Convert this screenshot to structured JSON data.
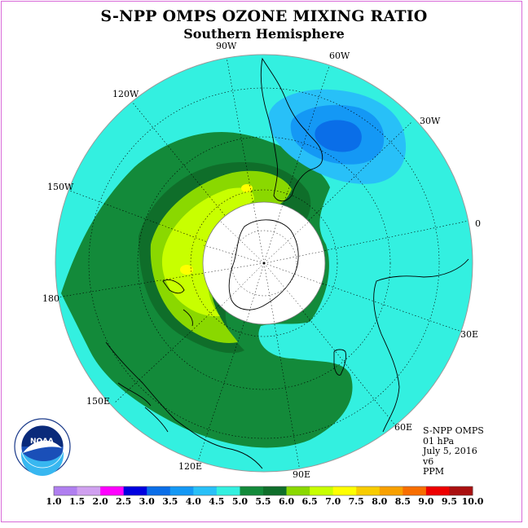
{
  "title": "S-NPP OMPS OZONE MIXING RATIO",
  "subtitle": "Southern Hemisphere",
  "info": {
    "product": "S-NPP OMPS",
    "level": "01 hPa",
    "date": "July 5, 2016",
    "version": "v6",
    "units": "PPM"
  },
  "longitude_labels": [
    "90W",
    "60W",
    "120W",
    "30W",
    "150W",
    "0",
    "180",
    "30E",
    "150E",
    "60E",
    "120E",
    "90E"
  ],
  "legend": {
    "ticks": [
      "1.0",
      "1.5",
      "2.0",
      "2.5",
      "3.0",
      "3.5",
      "4.0",
      "4.5",
      "5.0",
      "5.5",
      "6.0",
      "6.5",
      "7.0",
      "7.5",
      "8.0",
      "8.5",
      "9.0",
      "9.5",
      "10.0"
    ],
    "colors": [
      "#b07ff0",
      "#d0a0f0",
      "#ff00ff",
      "#0000e0",
      "#0a6ee8",
      "#1498f5",
      "#28c0f8",
      "#33f0e0",
      "#138a3a",
      "#0f6e2a",
      "#8ad800",
      "#c8ff00",
      "#ffff00",
      "#f8cc00",
      "#f8a000",
      "#f86e00",
      "#ee0000",
      "#aa1010",
      "#7a4a2a"
    ]
  },
  "logo": {
    "name": "NOAA",
    "ring_text": "NATIONAL OCEANIC AND ATMOSPHERIC ADMINISTRATION · U.S. DEPARTMENT OF COMMERCE"
  }
}
